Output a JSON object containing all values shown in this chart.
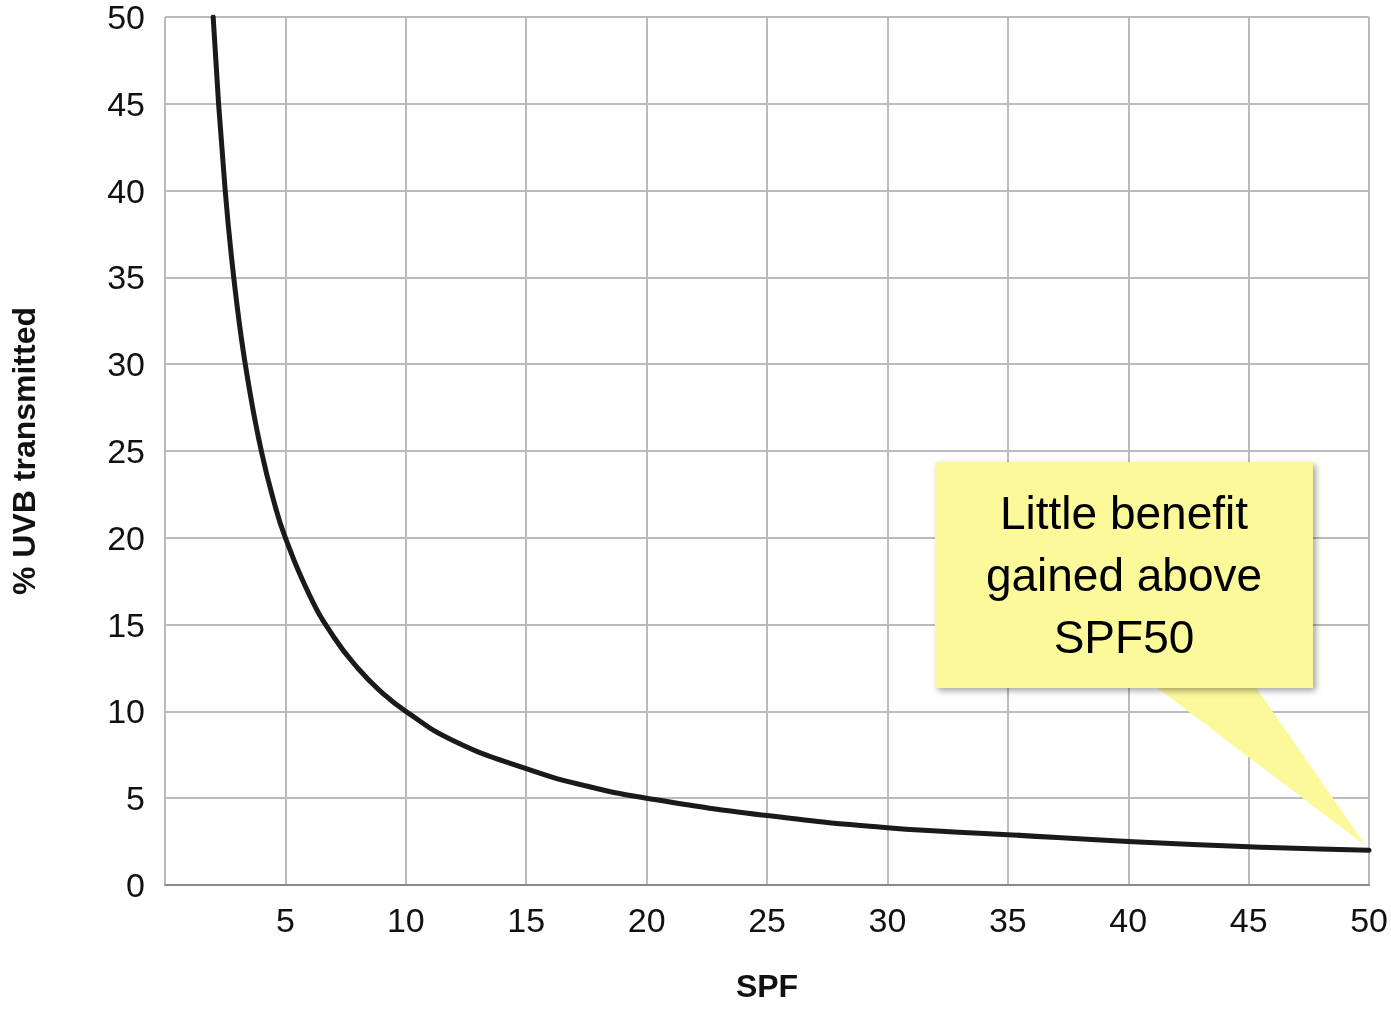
{
  "chart_data": {
    "type": "line",
    "xlabel": "SPF",
    "ylabel": "% UVB transmitted",
    "x": [
      2,
      2.5,
      3,
      3.5,
      4,
      4.5,
      5,
      6,
      7,
      8,
      9,
      10,
      12,
      15,
      17.5,
      20,
      25,
      30,
      35,
      40,
      45,
      50
    ],
    "series": [
      {
        "color": "#1a1a1a",
        "values": [
          50,
          40,
          33.3,
          28.6,
          25,
          22.2,
          20,
          16.7,
          14.3,
          12.5,
          11.1,
          10,
          8.3,
          6.7,
          5.7,
          5,
          4,
          3.3,
          2.9,
          2.5,
          2.2,
          2
        ]
      }
    ],
    "xlim": [
      0,
      50
    ],
    "xticks": [
      {
        "value": 0,
        "label": null
      },
      5,
      10,
      15,
      20,
      25,
      30,
      35,
      40,
      45,
      50
    ],
    "ylim": [
      0,
      50
    ],
    "yticks": [
      0,
      5,
      10,
      15,
      20,
      25,
      30,
      35,
      40,
      45,
      50
    ],
    "grid": true,
    "marker": "none",
    "line_style": "solid",
    "annotations": [
      "Little benefit gained above SPF50"
    ]
  }
}
